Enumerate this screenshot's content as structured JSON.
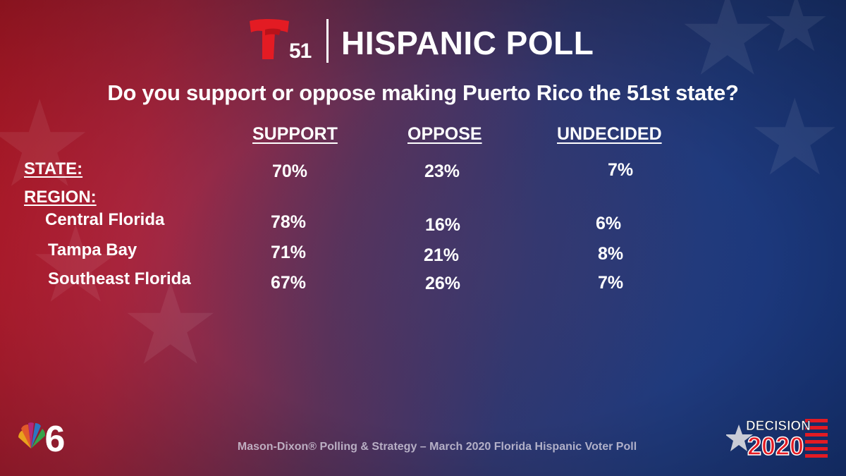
{
  "header": {
    "logo_number": "51",
    "title": "HISPANIC POLL"
  },
  "question": "Do you support or oppose making Puerto Rico the 51st state?",
  "table": {
    "columns": [
      "SUPPORT",
      "OPPOSE",
      "UNDECIDED"
    ],
    "state_label": "STATE:",
    "region_label": "REGION:",
    "state_values": [
      "70%",
      "23%",
      "7%"
    ],
    "regions": [
      {
        "name": "Central Florida",
        "values": [
          "78%",
          "16%",
          "6%"
        ]
      },
      {
        "name": "Tampa Bay",
        "values": [
          "71%",
          "21%",
          "8%"
        ]
      },
      {
        "name": "Southeast Florida",
        "values": [
          "67%",
          "26%",
          "7%"
        ]
      }
    ]
  },
  "footer": {
    "source": "Mason-Dixon® Polling & Strategy – March 2020 Florida Hispanic Voter Poll",
    "decision_word": "DECISION",
    "decision_year": "2020",
    "station_number": "6"
  },
  "colors": {
    "bg_red": "#d21d2e",
    "bg_blue": "#17357a",
    "logo_red": "#e31b23",
    "text": "#ffffff"
  }
}
